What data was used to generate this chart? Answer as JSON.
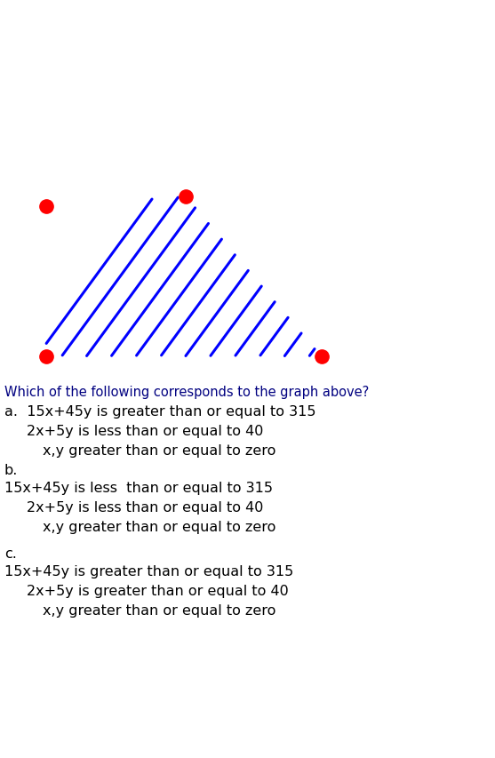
{
  "bg_color_graph": "#000000",
  "bg_color_text": "#ffffff",
  "line_color": "#ffffff",
  "hatch_color": "#0000ff",
  "dot_color": "#ff0000",
  "question_text": "Which of the following corresponds to the graph above?",
  "question_color": "#000080",
  "option_a_label": "a.",
  "option_a_line1": "15x+45y is greater than or equal to 315",
  "option_a_line2": "2x+5y is less than or equal to 40",
  "option_a_line3": "x,y greater than or equal to zero",
  "option_b_label": "b.",
  "option_b_line1": "15x+45y is less  than or equal to 315",
  "option_b_line2": "2x+5y is less than or equal to 40",
  "option_b_line3": "x,y greater than or equal to zero",
  "option_c_label": "c.",
  "option_c_line1": "15x+45y is greater than or equal to 315",
  "option_c_line2": "2x+5y is greater than or equal to 40",
  "option_c_line3": "x,y greater than or equal to zero",
  "black": "#000000",
  "navy": "#000080"
}
